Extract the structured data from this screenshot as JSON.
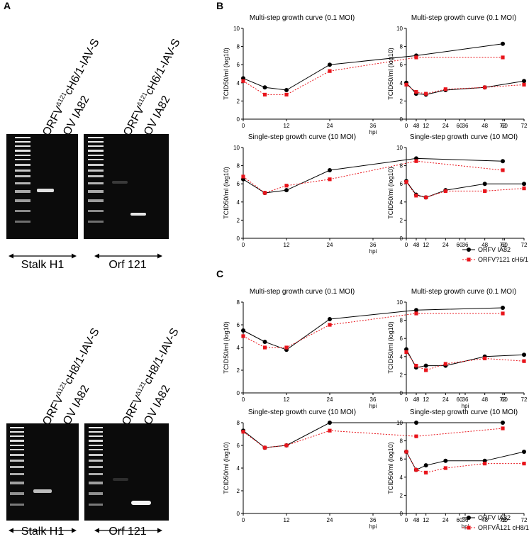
{
  "panels": {
    "A": "A",
    "B": "B",
    "C": "C"
  },
  "gels": [
    {
      "lanes": [
        {
          "prefix": "ORFV",
          "sup": "Δ121",
          "suffix": "cH6/1-IAV-S"
        },
        {
          "prefix": "OV IA82",
          "sup": "",
          "suffix": ""
        }
      ],
      "span_label": "Stalk H1"
    },
    {
      "lanes": [
        {
          "prefix": "ORFV",
          "sup": "Δ121",
          "suffix": "cH6/1-IAV-S"
        },
        {
          "prefix": "OV IA82",
          "sup": "",
          "suffix": ""
        }
      ],
      "span_label": "Orf 121"
    },
    {
      "lanes": [
        {
          "prefix": "ORFV",
          "sup": "Δ121",
          "suffix": "cH8/1-IAV-S"
        },
        {
          "prefix": "OV IA82",
          "sup": "",
          "suffix": ""
        }
      ],
      "span_label": "Stalk H1"
    },
    {
      "lanes": [
        {
          "prefix": "ORFV",
          "sup": "Δ121",
          "suffix": "cH8/1-IAV-S"
        },
        {
          "prefix": "OV IA82",
          "sup": "",
          "suffix": ""
        }
      ],
      "span_label": "Orf 121"
    }
  ],
  "colors": {
    "series1": "#000000",
    "series2": "#e8141b"
  },
  "legends": [
    {
      "panel": "B",
      "entries": [
        "ORFV IA82",
        "ORFV?121 cH6/1"
      ]
    },
    {
      "panel": "C",
      "entries": [
        "ORFV IA82",
        "ORFVÂ121 cH8/1"
      ]
    }
  ],
  "chart_data": [
    {
      "type": "line",
      "panel": "B",
      "title": "Multi-step growth curve (0.1 MOI)",
      "xlabel": "hpi",
      "ylabel": "TCID50/ml (log10)",
      "xlim": [
        0,
        72
      ],
      "ylim": [
        0,
        10
      ],
      "xticks": [
        0,
        12,
        24,
        36,
        48,
        60,
        72
      ],
      "yticks": [
        0,
        2,
        4,
        6,
        8,
        10
      ],
      "x": [
        0,
        6,
        12,
        24,
        48,
        72
      ],
      "series": [
        {
          "name": "ORFV IA82",
          "values": [
            4.5,
            3.5,
            3.2,
            6.0,
            7.0,
            8.3
          ]
        },
        {
          "name": "ORFV?121 cH6/1",
          "values": [
            4.2,
            2.7,
            2.7,
            5.3,
            6.8,
            6.8
          ]
        }
      ]
    },
    {
      "type": "line",
      "panel": "B",
      "title": "Multi-step growth curve (0.1 MOI)",
      "xlabel": "",
      "ylabel": "TCID50/ml (log10)",
      "xlim": [
        0,
        72
      ],
      "ylim": [
        0,
        10
      ],
      "xticks": [
        0,
        12,
        24,
        36,
        48,
        60,
        72
      ],
      "yticks": [
        0,
        2,
        4,
        6,
        8,
        10
      ],
      "x": [
        0,
        6,
        12,
        24,
        48,
        72
      ],
      "series": [
        {
          "name": "ORFV IA82",
          "values": [
            4.0,
            2.8,
            2.7,
            3.2,
            3.5,
            4.2
          ]
        },
        {
          "name": "ORFV?121 cH6/1",
          "values": [
            3.8,
            3.0,
            2.8,
            3.3,
            3.5,
            3.8
          ]
        }
      ]
    },
    {
      "type": "line",
      "panel": "B",
      "title": "Single-step growth curve (10 MOI)",
      "xlabel": "hpi",
      "ylabel": "TCID50/ml (log10)",
      "xlim": [
        0,
        72
      ],
      "ylim": [
        0,
        10
      ],
      "xticks": [
        0,
        12,
        24,
        36,
        48,
        60,
        72
      ],
      "yticks": [
        0,
        2,
        4,
        6,
        8,
        10
      ],
      "x": [
        0,
        6,
        12,
        24,
        48,
        72
      ],
      "series": [
        {
          "name": "ORFV IA82",
          "values": [
            6.5,
            5.0,
            5.3,
            7.5,
            8.8,
            8.5
          ]
        },
        {
          "name": "ORFV?121 cH6/1",
          "values": [
            6.8,
            5.0,
            5.8,
            6.5,
            8.5,
            7.5
          ]
        }
      ]
    },
    {
      "type": "line",
      "panel": "B",
      "title": "Single-step growth curve (10 MOI)",
      "xlabel": "",
      "ylabel": "TCID50/ml (log10)",
      "xlim": [
        0,
        72
      ],
      "ylim": [
        0,
        10
      ],
      "xticks": [
        0,
        12,
        24,
        36,
        48,
        60,
        72
      ],
      "yticks": [
        0,
        2,
        4,
        6,
        8,
        10
      ],
      "x": [
        0,
        6,
        12,
        24,
        48,
        72
      ],
      "series": [
        {
          "name": "ORFV IA82",
          "values": [
            6.3,
            4.8,
            4.5,
            5.3,
            6.0,
            6.0
          ]
        },
        {
          "name": "ORFV?121 cH6/1",
          "values": [
            6.2,
            4.7,
            4.5,
            5.2,
            5.2,
            5.5
          ]
        }
      ]
    },
    {
      "type": "line",
      "panel": "C",
      "title": "Multi-step growth curve (0.1 MOI)",
      "xlabel": "hpi",
      "ylabel": "TCID50/ml (log10)",
      "xlim": [
        0,
        72
      ],
      "ylim": [
        0,
        8
      ],
      "xticks": [
        0,
        12,
        24,
        36,
        48,
        60,
        72
      ],
      "yticks": [
        0,
        2,
        4,
        6,
        8
      ],
      "x": [
        0,
        6,
        12,
        24,
        48,
        72
      ],
      "series": [
        {
          "name": "ORFV IA82",
          "values": [
            5.5,
            4.5,
            3.8,
            6.5,
            7.3,
            7.5
          ]
        },
        {
          "name": "ORFVÂ121 cH8/1",
          "values": [
            5.0,
            4.0,
            4.0,
            6.0,
            7.0,
            7.0
          ]
        }
      ]
    },
    {
      "type": "line",
      "panel": "C",
      "title": "Multi-step growth curve (0.1 MOI)",
      "xlabel": "hpi",
      "ylabel": "TCID50/ml (log10)",
      "xlim": [
        0,
        72
      ],
      "ylim": [
        0,
        10
      ],
      "xticks": [
        0,
        12,
        24,
        36,
        48,
        60,
        72
      ],
      "yticks": [
        0,
        2,
        4,
        6,
        8,
        10
      ],
      "x": [
        0,
        6,
        12,
        24,
        48,
        72
      ],
      "series": [
        {
          "name": "ORFV IA82",
          "values": [
            4.8,
            2.8,
            3.0,
            3.0,
            4.0,
            4.2
          ]
        },
        {
          "name": "ORFVÂ121 cH8/1",
          "values": [
            4.5,
            3.0,
            2.5,
            3.2,
            3.8,
            3.5
          ]
        }
      ]
    },
    {
      "type": "line",
      "panel": "C",
      "title": "Single-step growth curve (10 MOI)",
      "xlabel": "hpi",
      "ylabel": "TCID50/ml (log10)",
      "xlim": [
        0,
        72
      ],
      "ylim": [
        0,
        8
      ],
      "xticks": [
        0,
        12,
        24,
        36,
        48,
        60,
        72
      ],
      "yticks": [
        0,
        2,
        4,
        6,
        8
      ],
      "x": [
        0,
        6,
        12,
        24,
        48,
        72
      ],
      "series": [
        {
          "name": "ORFV IA82",
          "values": [
            7.3,
            5.8,
            6.0,
            8.0,
            8.0,
            8.0
          ]
        },
        {
          "name": "ORFVÂ121 cH8/1",
          "values": [
            7.2,
            5.8,
            6.0,
            7.3,
            6.8,
            7.5
          ]
        }
      ]
    },
    {
      "type": "line",
      "panel": "C",
      "title": "Single-step growth curve (10 MOI)",
      "xlabel": "hpi",
      "ylabel": "TCID50/ml (log10)",
      "xlim": [
        0,
        72
      ],
      "ylim": [
        0,
        10
      ],
      "xticks": [
        0,
        12,
        24,
        36,
        48,
        60,
        72
      ],
      "yticks": [
        0,
        2,
        4,
        6,
        8,
        10
      ],
      "x": [
        0,
        6,
        12,
        24,
        48,
        72
      ],
      "series": [
        {
          "name": "ORFV IA82",
          "values": [
            6.8,
            4.8,
            5.3,
            5.8,
            5.8,
            6.8
          ]
        },
        {
          "name": "ORFVÂ121 cH8/1",
          "values": [
            6.8,
            4.8,
            4.5,
            5.0,
            5.5,
            5.5
          ]
        }
      ]
    }
  ]
}
